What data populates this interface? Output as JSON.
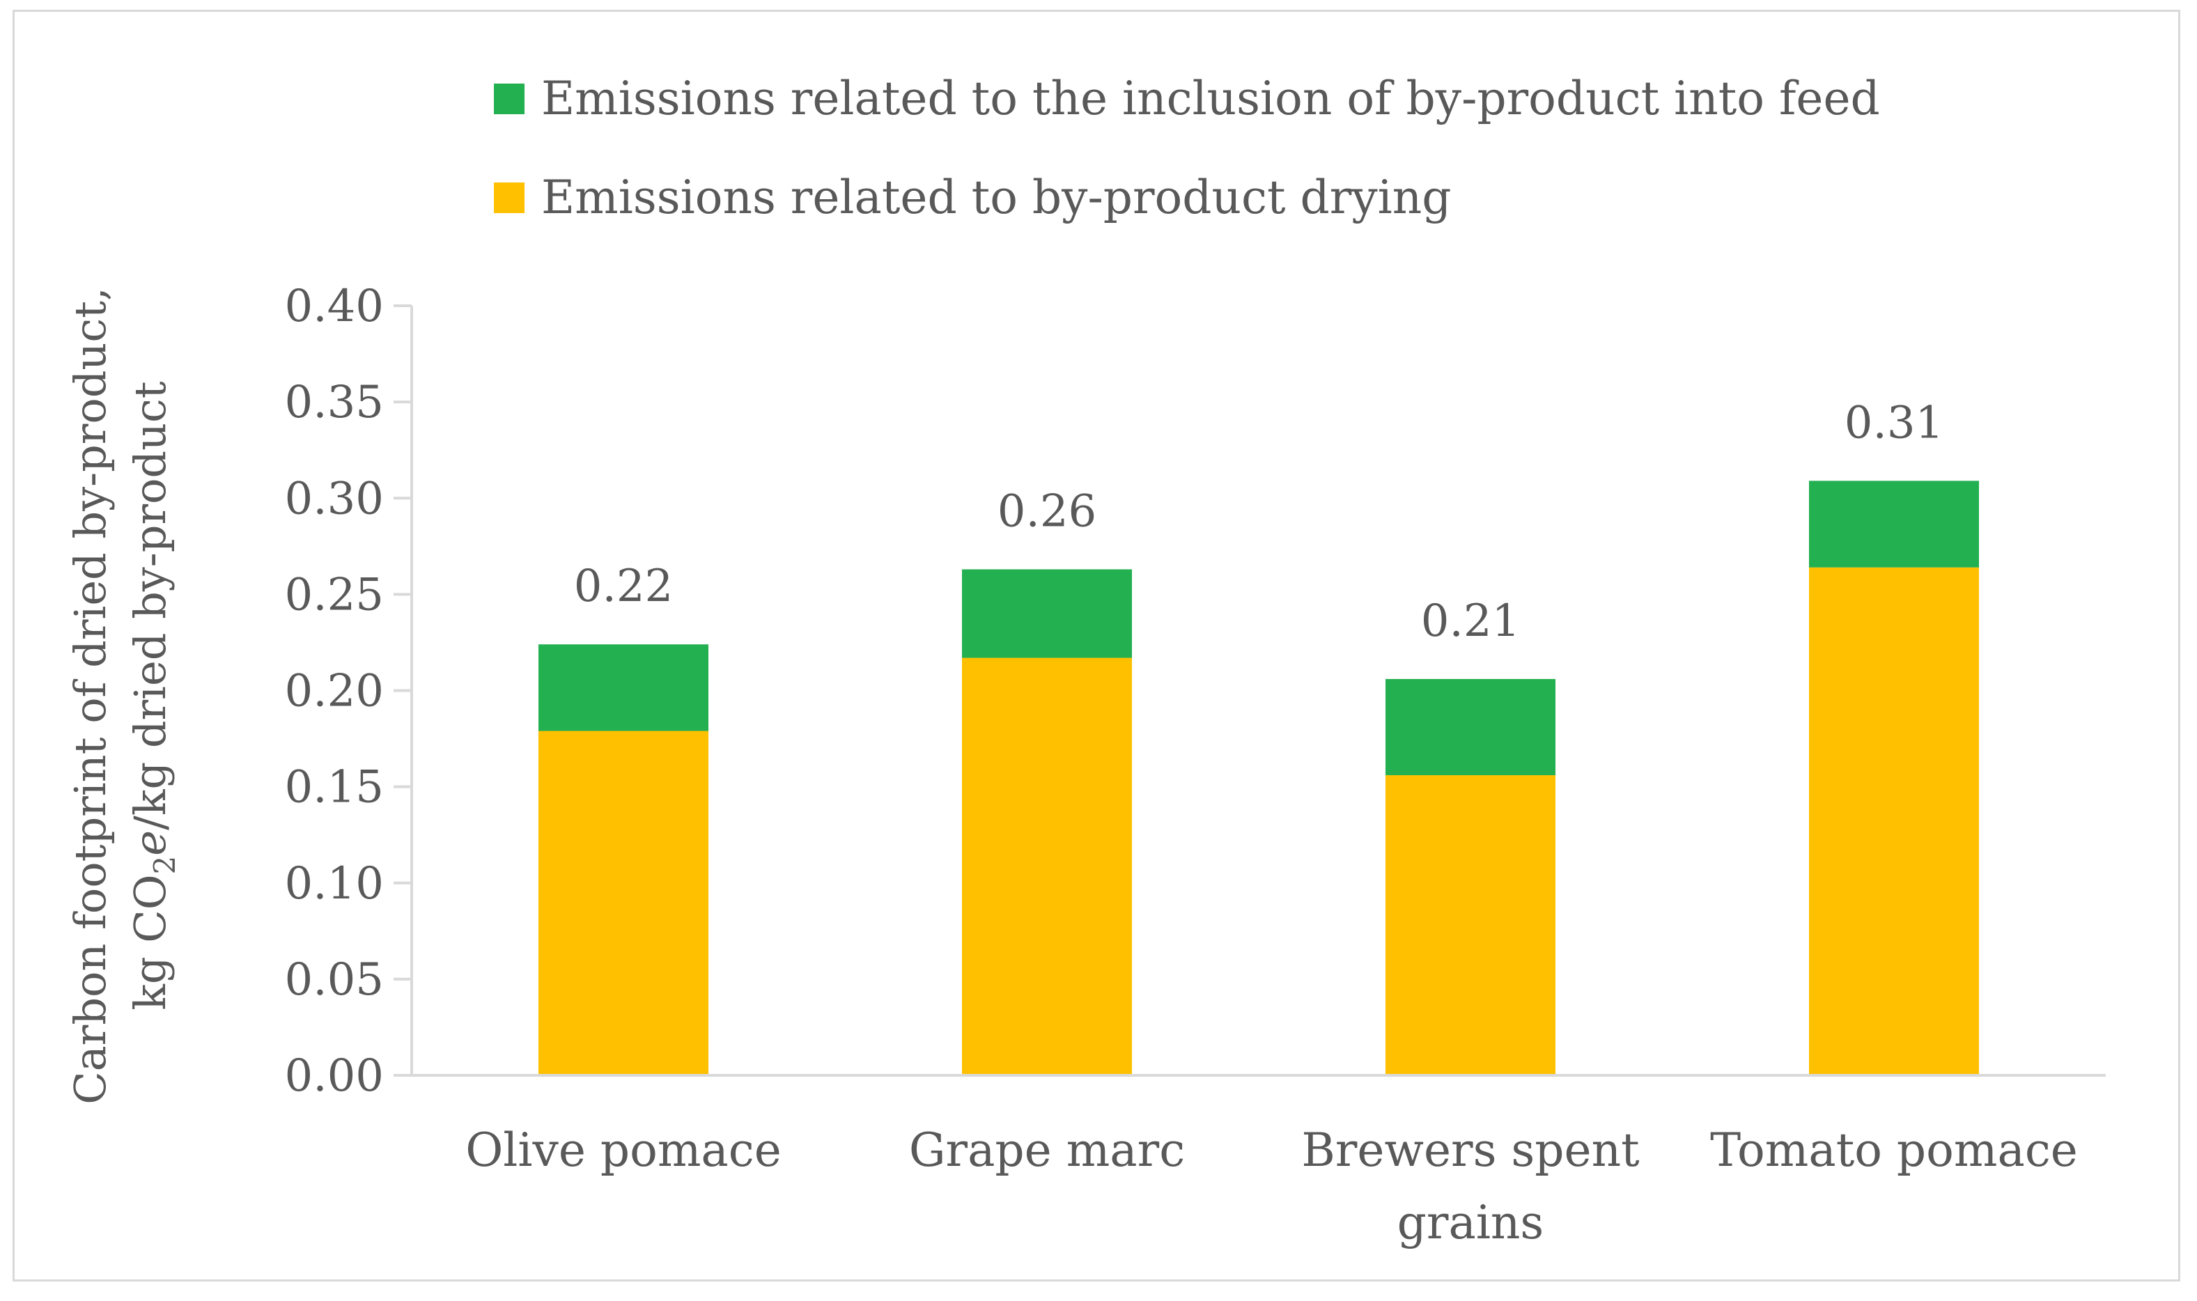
{
  "chart_data": {
    "type": "bar",
    "stacked": true,
    "categories": [
      [
        "Olive pomace"
      ],
      [
        "Grape marc"
      ],
      [
        "Brewers spent",
        "grains"
      ],
      [
        "Tomato pomace"
      ]
    ],
    "series": [
      {
        "name": "Emissions related to by-product drying",
        "color": "#ffc000",
        "values": [
          0.179,
          0.217,
          0.156,
          0.264
        ]
      },
      {
        "name": "Emissions related to the inclusion of by-product into feed",
        "color": "#22b050",
        "values": [
          0.045,
          0.046,
          0.05,
          0.045
        ]
      }
    ],
    "totals_labels": [
      "0.22",
      "0.26",
      "0.21",
      "0.31"
    ],
    "ylabel_line1": "Carbon footprint of dried by-product,",
    "ylabel_line2_pre": "kg CO",
    "ylabel_line2_sub": "2",
    "ylabel_line2_italic": "e",
    "ylabel_line2_post": "/kg dried by-product",
    "ylim": [
      0,
      0.4
    ],
    "yticks": [
      "0.00",
      "0.05",
      "0.10",
      "0.15",
      "0.20",
      "0.25",
      "0.30",
      "0.35",
      "0.40"
    ],
    "grid": false,
    "legend_position": "top",
    "legend_order": [
      1,
      0
    ],
    "text_color": "#595959",
    "axis_color": "#d9d9d9"
  }
}
